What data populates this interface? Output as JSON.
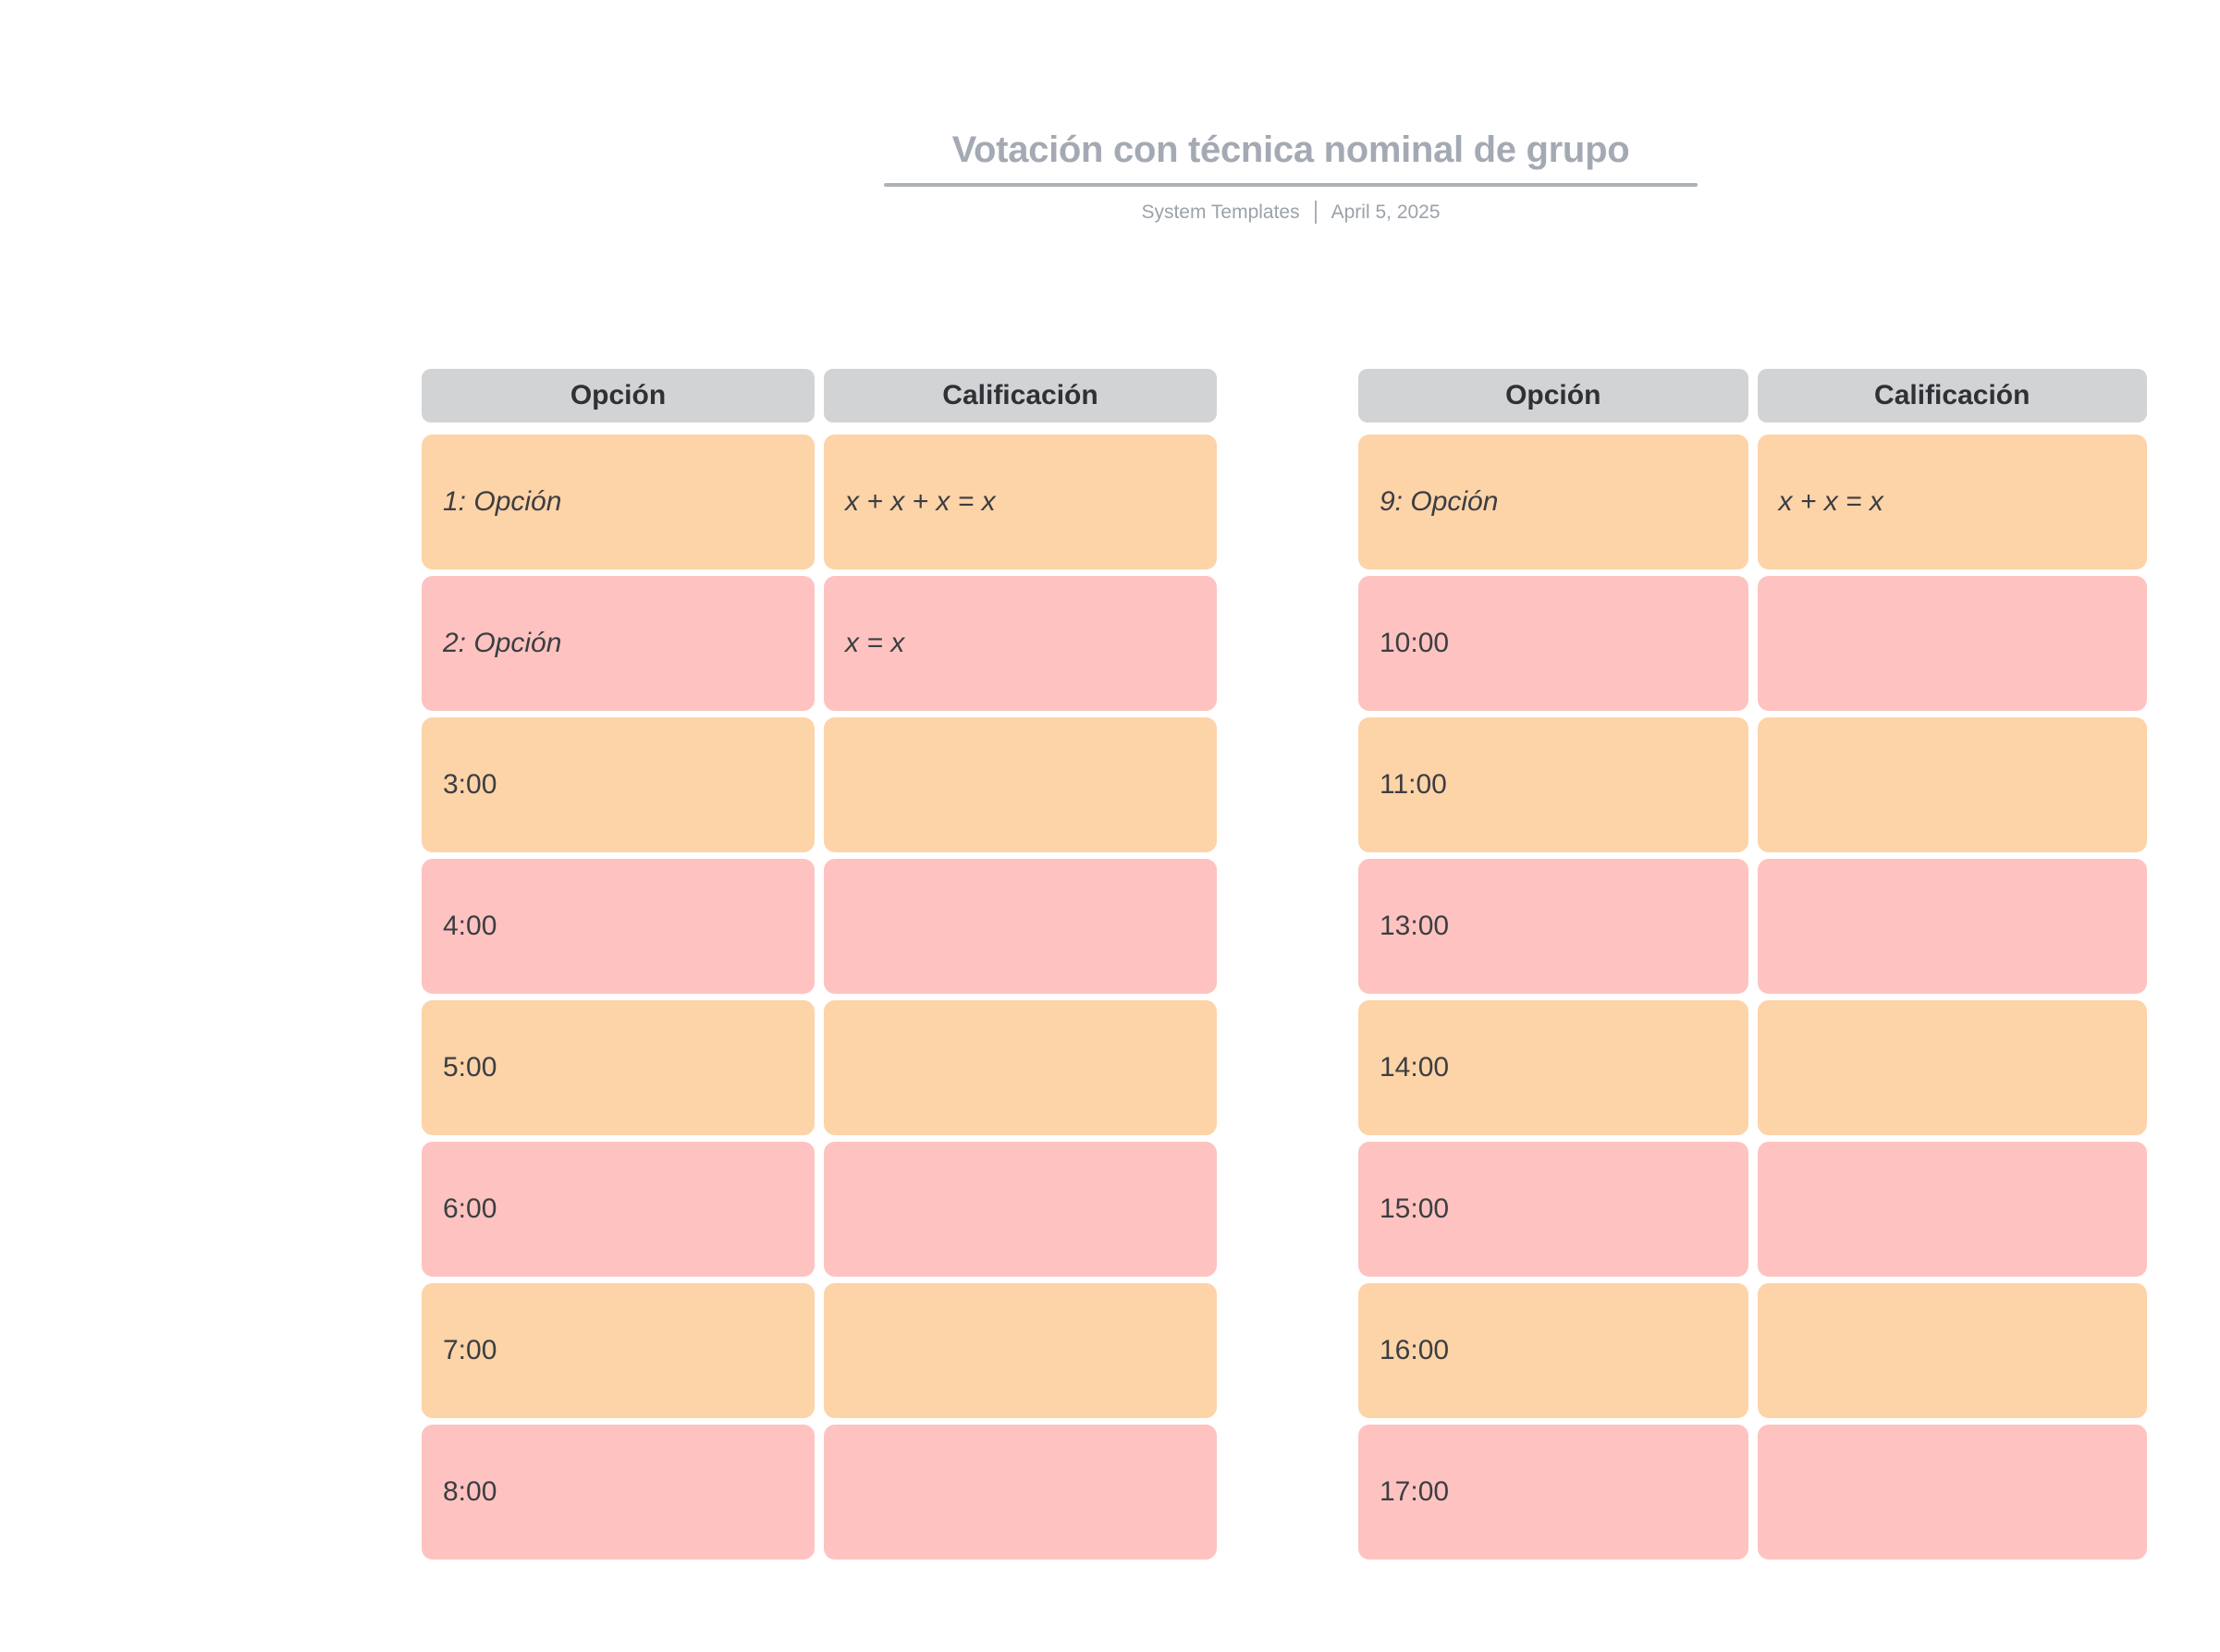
{
  "header": {
    "title": "Votación con técnica nominal de grupo",
    "byline": "System Templates",
    "date": "April 5, 2025"
  },
  "colors": {
    "row_orange": "#fdd3a8",
    "row_pink": "#fec3c0",
    "column_header_gray": "#d2d3d5",
    "title_gray": "#a4aab3"
  },
  "tables": [
    {
      "headers": [
        "Opción",
        "Calificación"
      ],
      "rows": [
        {
          "option": "1: Opción",
          "rating": "x + x + x = x"
        },
        {
          "option": "2: Opción",
          "rating": "x = x"
        },
        {
          "option": "3:00",
          "rating": ""
        },
        {
          "option": "4:00",
          "rating": ""
        },
        {
          "option": "5:00",
          "rating": ""
        },
        {
          "option": "6:00",
          "rating": ""
        },
        {
          "option": "7:00",
          "rating": ""
        },
        {
          "option": "8:00",
          "rating": ""
        }
      ]
    },
    {
      "headers": [
        "Opción",
        "Calificación"
      ],
      "rows": [
        {
          "option": "9: Opción",
          "rating": "x + x = x"
        },
        {
          "option": "10:00",
          "rating": ""
        },
        {
          "option": "11:00",
          "rating": ""
        },
        {
          "option": "13:00",
          "rating": ""
        },
        {
          "option": "14:00",
          "rating": ""
        },
        {
          "option": "15:00",
          "rating": ""
        },
        {
          "option": "16:00",
          "rating": ""
        },
        {
          "option": "17:00",
          "rating": ""
        }
      ]
    }
  ]
}
